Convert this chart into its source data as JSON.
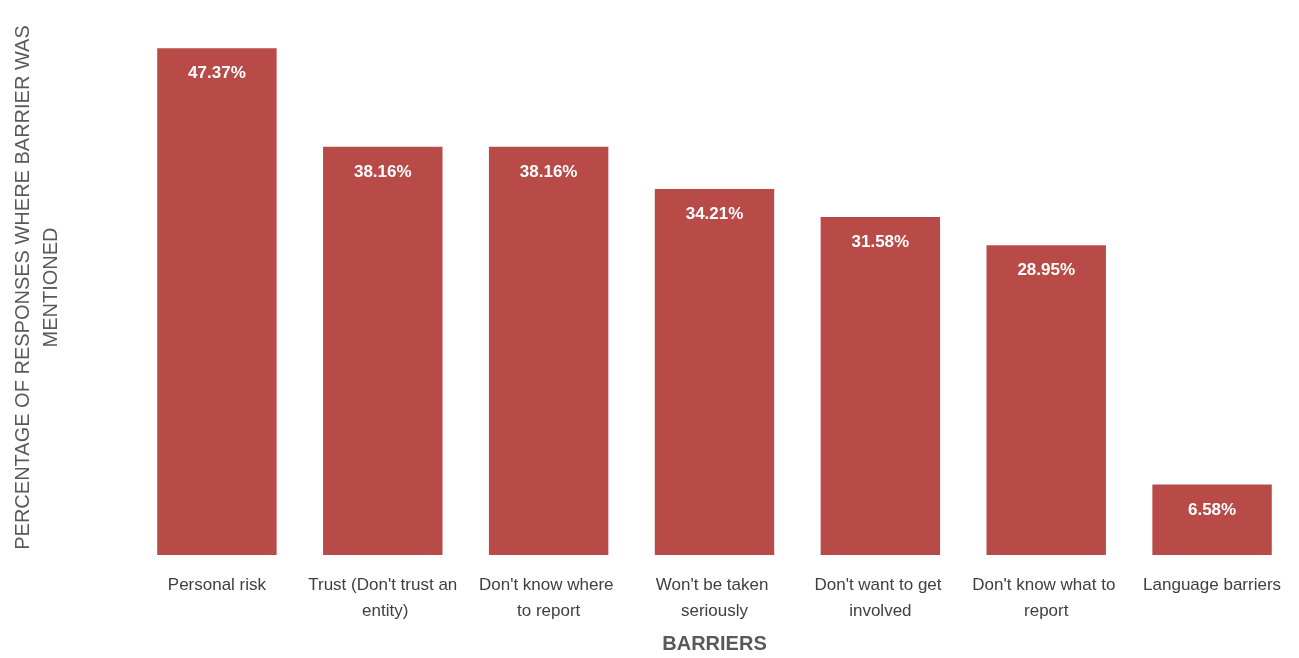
{
  "chart_data": {
    "type": "bar",
    "xlabel": "BARRIERS",
    "ylabel": "PERCENTAGE OF RESPONSES WHERE BARRIER WAS MENTIONED",
    "categories": [
      "Personal risk",
      "Trust (Don't trust an entity)",
      "Don't know where to report",
      "Won't be taken seriously",
      "Don't want to get involved",
      "Don't know what to report",
      "Language barriers"
    ],
    "values": [
      47.37,
      38.16,
      38.16,
      34.21,
      31.58,
      28.95,
      6.58
    ],
    "value_labels": [
      "47.37%",
      "38.16%",
      "38.16%",
      "34.21%",
      "31.58%",
      "28.95%",
      "6.58%"
    ],
    "color": "#b84a47",
    "grid": false
  }
}
